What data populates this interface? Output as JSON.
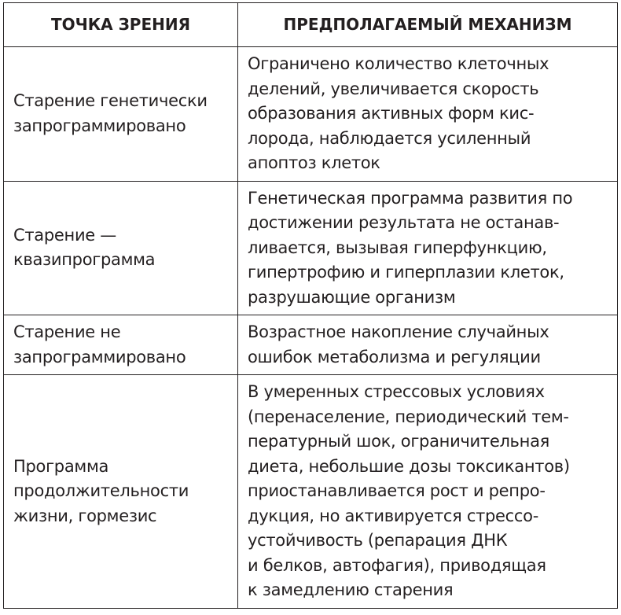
{
  "headers": [
    "ТОЧКА ЗРЕНИЯ",
    "ПРЕДПОЛАГАЕМЫЙ МЕХАНИЗМ"
  ],
  "rows": [
    {
      "view": [
        "Старение генетически",
        "запрограммировано"
      ],
      "mechanism": [
        "Ограничено количество клеточных",
        "делений, увеличивается скорость",
        "образования активных форм кис-",
        "лорода, наблюдается усиленный",
        "апоптоз клеток"
      ]
    },
    {
      "view": [
        "Старение —",
        "квазипрограмма"
      ],
      "mechanism": [
        "Генетическая программа развития по",
        "достижении результата не останав-",
        "ливается, вызывая гиперфункцию,",
        "гипертрофию и гиперплазии клеток,",
        "разрушающие организм"
      ]
    },
    {
      "view": [
        "Старение не",
        "запрограммировано"
      ],
      "mechanism": [
        "Возрастное накопление случайных",
        "ошибок метаболизма и регуляции"
      ]
    },
    {
      "view": [
        "Программа",
        "продолжительности",
        "жизни, гормезис"
      ],
      "mechanism": [
        "В умеренных стрессовых условиях",
        "(перенаселение, периодический тем-",
        "пературный шок, ограничительная",
        "диета, небольшие дозы токсикантов)",
        "приостанавливается рост и репро-",
        "дукция, но активируется стрессо-",
        "устойчивость (репарация ДНК",
        "и белков, автофагия), приводящая",
        "к замедлению старения"
      ]
    }
  ]
}
